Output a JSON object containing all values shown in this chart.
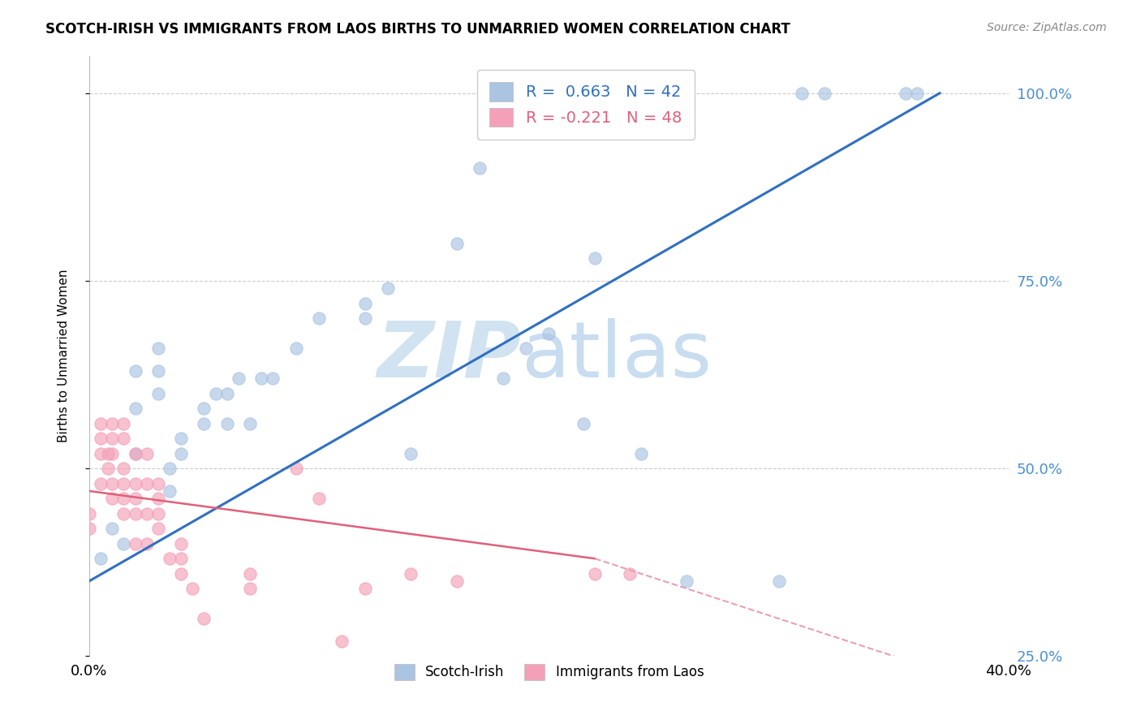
{
  "title": "SCOTCH-IRISH VS IMMIGRANTS FROM LAOS BIRTHS TO UNMARRIED WOMEN CORRELATION CHART",
  "source": "Source: ZipAtlas.com",
  "ylabel": "Births to Unmarried Women",
  "xlim": [
    0.0,
    0.4
  ],
  "ylim": [
    0.3,
    1.05
  ],
  "ytick_values": [
    0.25,
    0.5,
    0.75,
    1.0
  ],
  "ytick_labels": [
    "25.0%",
    "50.0%",
    "75.0%",
    "100.0%"
  ],
  "xtick_values": [
    0.0,
    0.05,
    0.1,
    0.15,
    0.2,
    0.25,
    0.3,
    0.35,
    0.4
  ],
  "xtick_labels": [
    "0.0%",
    "",
    "",
    "",
    "",
    "",
    "",
    "",
    "40.0%"
  ],
  "scotch_irish_color": "#aac4e2",
  "laos_color": "#f4a0b8",
  "scotch_irish_line_color": "#3070c0",
  "laos_line_color": "#e0607a",
  "laos_line_dashed_color": "#e8a0b0",
  "scotch_irish_R": 0.663,
  "scotch_irish_N": 42,
  "laos_R": -0.221,
  "laos_N": 48,
  "legend_label_blue": "R =  0.663   N = 42",
  "legend_label_pink": "R = -0.221   N = 48",
  "bottom_label_blue": "Scotch-Irish",
  "bottom_label_pink": "Immigrants from Laos",
  "scotch_irish_points": [
    [
      0.005,
      0.38
    ],
    [
      0.01,
      0.42
    ],
    [
      0.015,
      0.4
    ],
    [
      0.02,
      0.52
    ],
    [
      0.02,
      0.58
    ],
    [
      0.02,
      0.63
    ],
    [
      0.03,
      0.6
    ],
    [
      0.03,
      0.63
    ],
    [
      0.03,
      0.66
    ],
    [
      0.035,
      0.47
    ],
    [
      0.035,
      0.5
    ],
    [
      0.04,
      0.52
    ],
    [
      0.04,
      0.54
    ],
    [
      0.05,
      0.56
    ],
    [
      0.05,
      0.58
    ],
    [
      0.055,
      0.6
    ],
    [
      0.06,
      0.56
    ],
    [
      0.06,
      0.6
    ],
    [
      0.065,
      0.62
    ],
    [
      0.07,
      0.56
    ],
    [
      0.075,
      0.62
    ],
    [
      0.08,
      0.62
    ],
    [
      0.09,
      0.66
    ],
    [
      0.1,
      0.7
    ],
    [
      0.12,
      0.7
    ],
    [
      0.12,
      0.72
    ],
    [
      0.13,
      0.74
    ],
    [
      0.14,
      0.52
    ],
    [
      0.16,
      0.8
    ],
    [
      0.17,
      0.9
    ],
    [
      0.18,
      0.62
    ],
    [
      0.19,
      0.66
    ],
    [
      0.2,
      0.68
    ],
    [
      0.215,
      0.56
    ],
    [
      0.22,
      0.78
    ],
    [
      0.24,
      0.52
    ],
    [
      0.26,
      0.35
    ],
    [
      0.3,
      0.35
    ],
    [
      0.31,
      1.0
    ],
    [
      0.32,
      1.0
    ],
    [
      0.355,
      1.0
    ],
    [
      0.36,
      1.0
    ]
  ],
  "laos_points": [
    [
      0.0,
      0.42
    ],
    [
      0.0,
      0.44
    ],
    [
      0.005,
      0.48
    ],
    [
      0.005,
      0.52
    ],
    [
      0.005,
      0.54
    ],
    [
      0.005,
      0.56
    ],
    [
      0.008,
      0.5
    ],
    [
      0.008,
      0.52
    ],
    [
      0.01,
      0.46
    ],
    [
      0.01,
      0.48
    ],
    [
      0.01,
      0.52
    ],
    [
      0.01,
      0.54
    ],
    [
      0.01,
      0.56
    ],
    [
      0.015,
      0.44
    ],
    [
      0.015,
      0.46
    ],
    [
      0.015,
      0.48
    ],
    [
      0.015,
      0.5
    ],
    [
      0.015,
      0.54
    ],
    [
      0.015,
      0.56
    ],
    [
      0.02,
      0.4
    ],
    [
      0.02,
      0.44
    ],
    [
      0.02,
      0.46
    ],
    [
      0.02,
      0.48
    ],
    [
      0.02,
      0.52
    ],
    [
      0.025,
      0.4
    ],
    [
      0.025,
      0.44
    ],
    [
      0.025,
      0.48
    ],
    [
      0.025,
      0.52
    ],
    [
      0.03,
      0.42
    ],
    [
      0.03,
      0.44
    ],
    [
      0.03,
      0.46
    ],
    [
      0.03,
      0.48
    ],
    [
      0.035,
      0.38
    ],
    [
      0.04,
      0.36
    ],
    [
      0.04,
      0.38
    ],
    [
      0.04,
      0.4
    ],
    [
      0.045,
      0.34
    ],
    [
      0.05,
      0.3
    ],
    [
      0.07,
      0.34
    ],
    [
      0.07,
      0.36
    ],
    [
      0.09,
      0.5
    ],
    [
      0.1,
      0.46
    ],
    [
      0.11,
      0.27
    ],
    [
      0.12,
      0.34
    ],
    [
      0.14,
      0.36
    ],
    [
      0.16,
      0.35
    ],
    [
      0.22,
      0.36
    ],
    [
      0.235,
      0.36
    ]
  ]
}
